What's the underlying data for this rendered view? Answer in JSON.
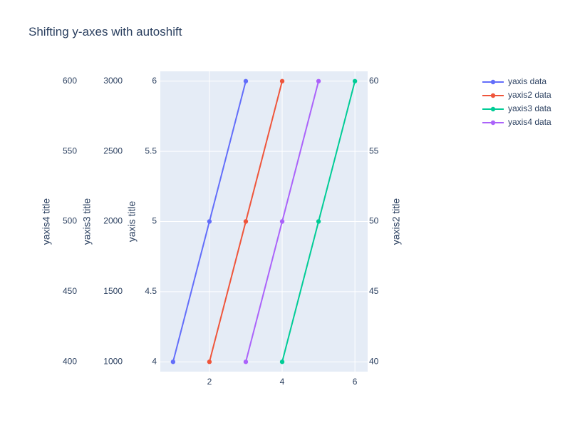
{
  "chart_data": {
    "type": "line",
    "title": "Shifting y-axes with autoshift",
    "xaxis": {
      "title": "",
      "range": [
        0.65,
        6.35
      ],
      "tickvals": [
        2,
        4,
        6
      ],
      "ticklabels": [
        "2",
        "4",
        "6"
      ],
      "grid": true
    },
    "yaxes": {
      "y": {
        "title": "yaxis title",
        "range": [
          3.93,
          6.07
        ],
        "tickvals": [
          4,
          4.5,
          5,
          5.5,
          6
        ],
        "ticklabels": [
          "4",
          "4.5",
          "5",
          "5.5",
          "6"
        ],
        "side": "left",
        "grid": true
      },
      "y2": {
        "title": "yaxis2 title",
        "range": [
          39.3,
          60.7
        ],
        "tickvals": [
          40,
          45,
          50,
          55,
          60
        ],
        "ticklabels": [
          "40",
          "45",
          "50",
          "55",
          "60"
        ],
        "side": "right"
      },
      "y3": {
        "title": "yaxis3 title",
        "range": [
          930,
          3070
        ],
        "tickvals": [
          1000,
          1500,
          2000,
          2500,
          3000
        ],
        "ticklabels": [
          "1000",
          "1500",
          "2000",
          "2500",
          "3000"
        ],
        "side": "left"
      },
      "y4": {
        "title": "yaxis4 title",
        "range": [
          393,
          607
        ],
        "tickvals": [
          400,
          450,
          500,
          550,
          600
        ],
        "ticklabels": [
          "400",
          "450",
          "500",
          "550",
          "600"
        ],
        "side": "left"
      }
    },
    "series": [
      {
        "name": "yaxis data",
        "axis": "y",
        "color": "#636efa",
        "x": [
          1,
          2,
          3
        ],
        "y": [
          4,
          5,
          6
        ]
      },
      {
        "name": "yaxis2 data",
        "axis": "y2",
        "color": "#EF553B",
        "x": [
          2,
          3,
          4
        ],
        "y": [
          40,
          50,
          60
        ]
      },
      {
        "name": "yaxis3 data",
        "axis": "y3",
        "color": "#00cc96",
        "x": [
          4,
          5,
          6
        ],
        "y": [
          1000,
          2000,
          3000
        ]
      },
      {
        "name": "yaxis4 data",
        "axis": "y4",
        "color": "#ab63fa",
        "x": [
          3,
          4,
          5
        ],
        "y": [
          400,
          500,
          600
        ]
      }
    ],
    "legend": {
      "placement": "top-right",
      "order": [
        "yaxis data",
        "yaxis2 data",
        "yaxis3 data",
        "yaxis4 data"
      ]
    },
    "colors": {
      "plot_bg": "#E5ECF6",
      "grid": "#ffffff",
      "text": "#2a3f5f"
    }
  }
}
